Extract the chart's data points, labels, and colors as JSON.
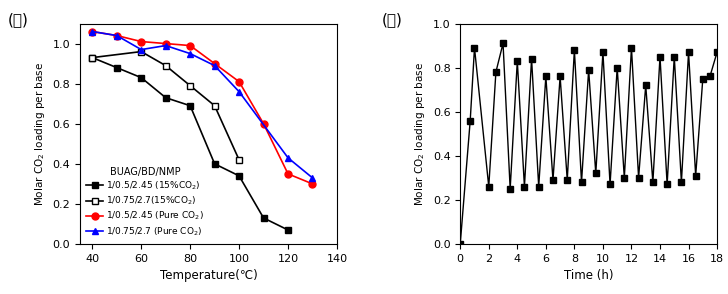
{
  "left": {
    "label_kor": "(가)",
    "series": [
      {
        "label": "1/0.5/2.45 (15%CO$_2$)",
        "color": "black",
        "marker": "s",
        "mfc": "black",
        "x": [
          40,
          50,
          60,
          70,
          80,
          90,
          100,
          110,
          120
        ],
        "y": [
          0.93,
          0.88,
          0.83,
          0.73,
          0.69,
          0.4,
          0.34,
          0.13,
          0.07
        ]
      },
      {
        "label": "1/0.75/2.7(15%CO$_2$)",
        "color": "black",
        "marker": "s",
        "mfc": "white",
        "x": [
          40,
          60,
          70,
          80,
          90,
          100
        ],
        "y": [
          0.93,
          0.96,
          0.89,
          0.79,
          0.69,
          0.42
        ]
      },
      {
        "label": "1/0.5/2.45 (Pure CO$_2$)",
        "color": "red",
        "marker": "o",
        "mfc": "red",
        "x": [
          40,
          50,
          60,
          70,
          80,
          90,
          100,
          110,
          120,
          130
        ],
        "y": [
          1.06,
          1.04,
          1.01,
          1.0,
          0.99,
          0.9,
          0.81,
          0.6,
          0.35,
          0.3
        ]
      },
      {
        "label": "1/0.75/2.7 (Pure CO$_2$)",
        "color": "blue",
        "marker": "^",
        "mfc": "blue",
        "x": [
          40,
          50,
          60,
          70,
          80,
          90,
          100,
          120,
          130
        ],
        "y": [
          1.06,
          1.04,
          0.97,
          0.99,
          0.95,
          0.89,
          0.76,
          0.43,
          0.33
        ]
      }
    ],
    "xlabel": "Temperature(℃)",
    "ylabel": "Molar CO$_2$ loading per base",
    "xlim": [
      35,
      140
    ],
    "ylim": [
      0.0,
      1.1
    ],
    "xticks": [
      40,
      60,
      80,
      100,
      120,
      140
    ],
    "yticks": [
      0.0,
      0.2,
      0.4,
      0.6,
      0.8,
      1.0
    ],
    "legend_title": "BUAG/BD/NMP"
  },
  "right": {
    "label_kor": "(나)",
    "x": [
      0,
      0.7,
      1.0,
      2.0,
      2.5,
      3.0,
      3.5,
      4.0,
      4.5,
      5.0,
      5.5,
      6.0,
      6.5,
      7.0,
      7.5,
      8.0,
      8.5,
      9.0,
      9.5,
      10.0,
      10.5,
      11.0,
      11.5,
      12.0,
      12.5,
      13.0,
      13.5,
      14.0,
      14.5,
      15.0,
      15.5,
      16.0,
      16.5,
      17.0,
      17.5,
      18.0
    ],
    "y": [
      0.0,
      0.56,
      0.89,
      0.26,
      0.78,
      0.91,
      0.25,
      0.83,
      0.26,
      0.84,
      0.26,
      0.76,
      0.29,
      0.76,
      0.29,
      0.88,
      0.28,
      0.79,
      0.32,
      0.87,
      0.27,
      0.8,
      0.3,
      0.89,
      0.3,
      0.72,
      0.28,
      0.85,
      0.27,
      0.85,
      0.28,
      0.87,
      0.31,
      0.75,
      0.76,
      0.87
    ],
    "xlabel": "Time (h)",
    "ylabel": "Molar CO$_2$ loading per base",
    "xlim": [
      0,
      18
    ],
    "ylim": [
      0.0,
      1.0
    ],
    "xticks": [
      0,
      2,
      4,
      6,
      8,
      10,
      12,
      14,
      16,
      18
    ],
    "yticks": [
      0.0,
      0.2,
      0.4,
      0.6,
      0.8,
      1.0
    ]
  }
}
